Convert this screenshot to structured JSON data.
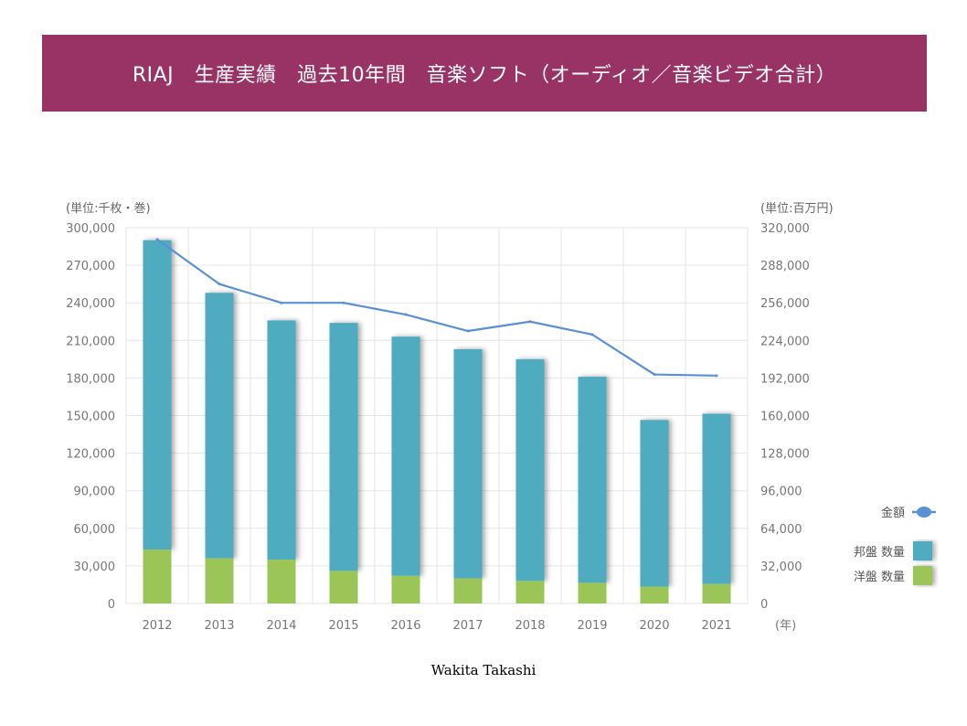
{
  "title": "RIAJ　生産実績　過去10年間　音楽ソフト（オーディオ／音楽ビデオ合計）",
  "credit": "Wakita Takashi",
  "colors": {
    "title_bg": "#993366",
    "domestic": "#4FACC0",
    "foreign": "#9BC556",
    "amount_line": "#5B8FD6",
    "grid": "#E6E6E6"
  },
  "chart_data": {
    "type": "bar",
    "stacked": true,
    "categories": [
      "2012",
      "2013",
      "2014",
      "2015",
      "2016",
      "2017",
      "2018",
      "2019",
      "2020",
      "2021"
    ],
    "series": [
      {
        "name": "洋盤 数量",
        "axis": "left",
        "values": [
          43000,
          36000,
          35000,
          26000,
          22000,
          20000,
          18000,
          16500,
          13500,
          15500
        ]
      },
      {
        "name": "邦盤 数量",
        "axis": "left",
        "values": [
          247000,
          212000,
          191000,
          198000,
          191000,
          183000,
          177000,
          164500,
          133000,
          136000
        ]
      },
      {
        "name": "金額",
        "type": "line",
        "axis": "right",
        "values": [
          310000,
          272000,
          256000,
          256000,
          246000,
          232000,
          240000,
          229000,
          195000,
          194000
        ]
      }
    ],
    "y_left": {
      "label": "(単位:千枚・巻)",
      "ylim": [
        0,
        300000
      ],
      "ticks": [
        "0",
        "30,000",
        "60,000",
        "90,000",
        "120,000",
        "150,000",
        "180,000",
        "210,000",
        "240,000",
        "270,000",
        "300,000"
      ]
    },
    "y_right": {
      "label": "(単位:百万円)",
      "ylim": [
        0,
        320000
      ],
      "ticks": [
        "0",
        "32,000",
        "64,000",
        "96,000",
        "128,000",
        "160,000",
        "192,000",
        "224,000",
        "256,000",
        "288,000",
        "320,000"
      ]
    },
    "x_unit": "(年)",
    "grid": true,
    "legend_position": "right",
    "legend": [
      {
        "label": "金額",
        "key": "amount_line",
        "symbol": "line"
      },
      {
        "label": "邦盤 数量",
        "key": "domestic",
        "symbol": "box"
      },
      {
        "label": "洋盤 数量",
        "key": "foreign",
        "symbol": "box"
      }
    ]
  }
}
